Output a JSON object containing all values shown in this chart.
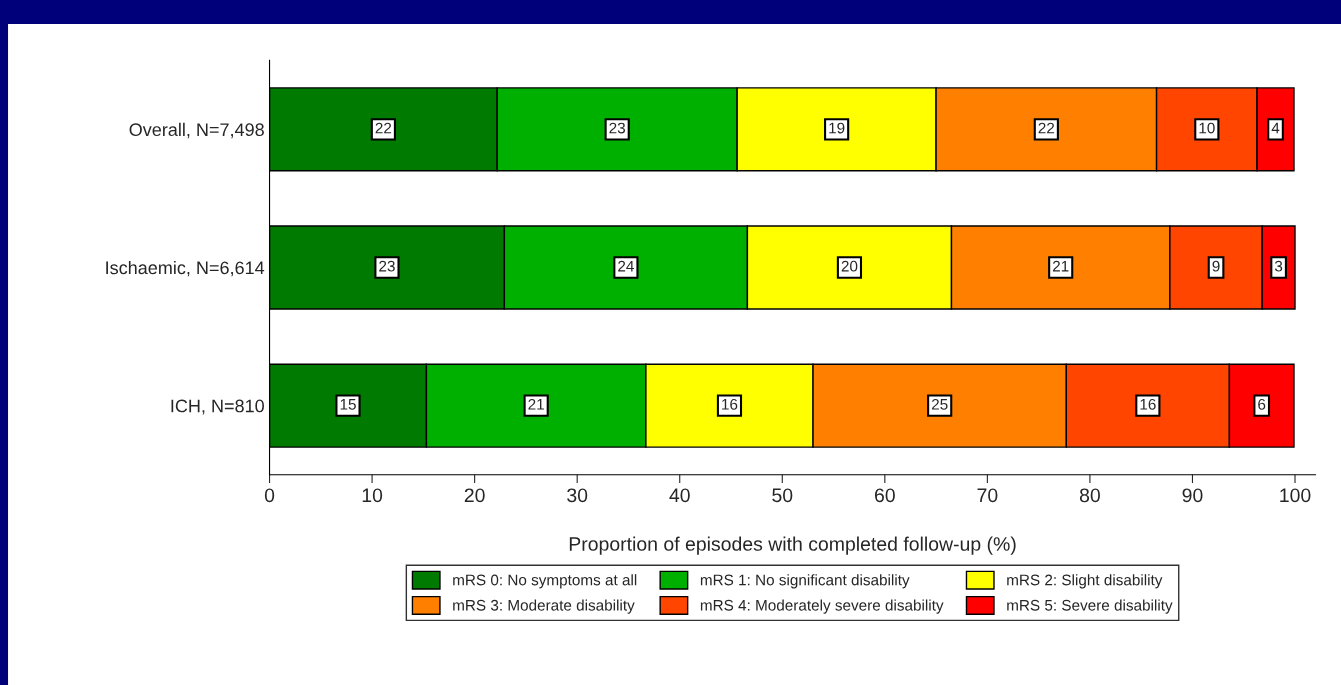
{
  "chart_data": {
    "type": "bar",
    "orientation": "horizontal",
    "stacked": true,
    "categories": [
      "Overall, N=7,498",
      "Ischaemic, N=6,614",
      "ICH, N=810"
    ],
    "xlabel": "Proportion of episodes with completed follow-up (%)",
    "xlim": [
      0,
      102
    ],
    "xticks": [
      0,
      10,
      20,
      30,
      40,
      50,
      60,
      70,
      80,
      90,
      100
    ],
    "grid": false,
    "legend": "bottom",
    "series": [
      {
        "name": "mRS 0: No symptoms at all",
        "color": "#007a00",
        "values": [
          22.2,
          22.9,
          15.3
        ],
        "value_labels": [
          "22",
          "23",
          "15"
        ]
      },
      {
        "name": "mRS 1: No significant disability",
        "color": "#00b000",
        "values": [
          23.4,
          23.7,
          21.4
        ],
        "value_labels": [
          "23",
          "24",
          "21"
        ]
      },
      {
        "name": "mRS 2: Slight disability",
        "color": "#ffff00",
        "values": [
          19.4,
          19.9,
          16.3
        ],
        "value_labels": [
          "19",
          "20",
          "16"
        ]
      },
      {
        "name": "mRS 3: Moderate disability",
        "color": "#ff8000",
        "values": [
          21.5,
          21.3,
          24.7
        ],
        "value_labels": [
          "22",
          "21",
          "25"
        ]
      },
      {
        "name": "mRS 4: Moderately severe disability",
        "color": "#ff4500",
        "values": [
          9.8,
          9.0,
          15.9
        ],
        "value_labels": [
          "10",
          "9",
          "16"
        ]
      },
      {
        "name": "mRS 5: Severe disability",
        "color": "#ff0000",
        "values": [
          3.6,
          3.2,
          6.3
        ],
        "value_labels": [
          "4",
          "3",
          "6"
        ]
      }
    ]
  }
}
